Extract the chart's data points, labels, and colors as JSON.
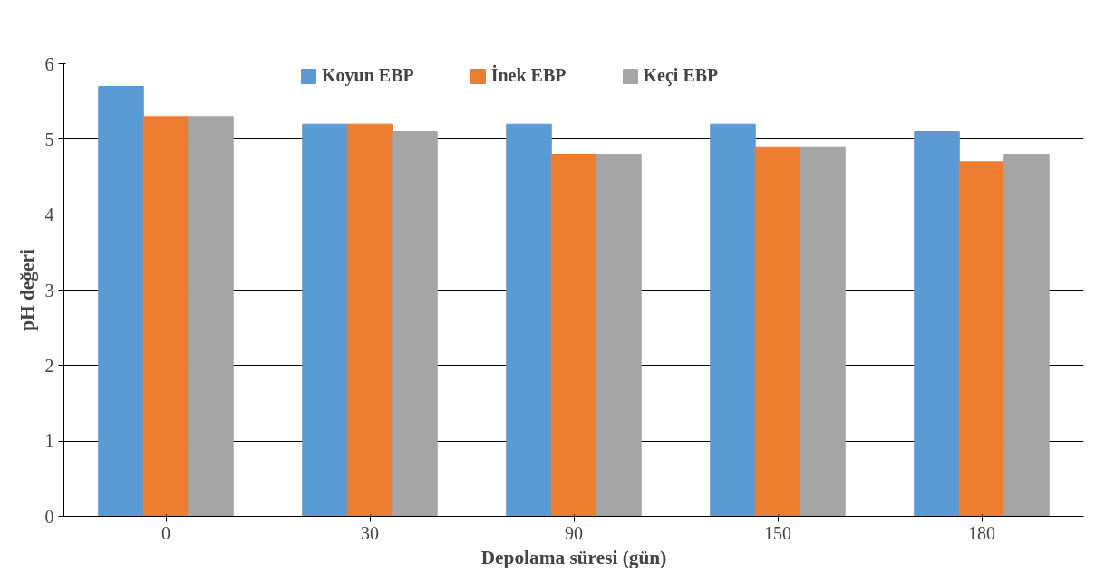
{
  "chart_data": {
    "type": "bar",
    "xlabel": "Depolama süresi (gün)",
    "ylabel": "pH değeri",
    "categories": [
      "0",
      "30",
      "90",
      "150",
      "180"
    ],
    "series": [
      {
        "name": "Koyun EBP",
        "color": "#5b9bd5",
        "values": [
          5.7,
          5.2,
          5.2,
          5.2,
          5.1
        ]
      },
      {
        "name": "İnek EBP",
        "color": "#ed7d31",
        "values": [
          5.3,
          5.2,
          4.8,
          4.9,
          4.7
        ]
      },
      {
        "name": "Keçi EBP",
        "color": "#a5a5a5",
        "values": [
          5.3,
          5.1,
          4.8,
          4.9,
          4.8
        ]
      }
    ],
    "ylim": [
      0,
      6
    ],
    "yticks": [
      0,
      1,
      2,
      3,
      4,
      5,
      6
    ],
    "grid": "y",
    "legend": "top"
  }
}
